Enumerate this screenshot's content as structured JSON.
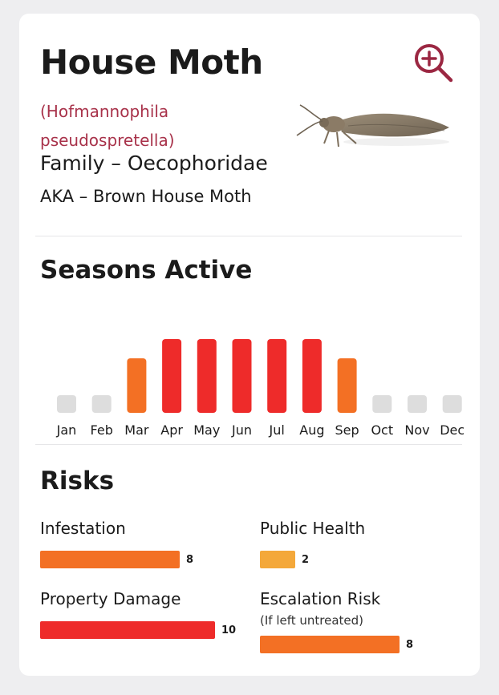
{
  "pest": {
    "name": "House Moth",
    "scientific_name": "(Hofmannophila pseudospretella)",
    "family": "Family – Oecophoridae",
    "aka": "AKA – Brown House Moth"
  },
  "icons": {
    "zoom": "zoom-in-icon",
    "pest_image": "moth-image"
  },
  "colors": {
    "accent": "#9b2742",
    "high": "#ee2b2a",
    "medium": "#f37024",
    "low": "#f4a83a",
    "inactive": "#dddddd"
  },
  "seasons": {
    "title": "Seasons Active",
    "months": [
      {
        "label": "Jan",
        "level": 0
      },
      {
        "label": "Feb",
        "level": 0
      },
      {
        "label": "Mar",
        "level": 2
      },
      {
        "label": "Apr",
        "level": 3
      },
      {
        "label": "May",
        "level": 3
      },
      {
        "label": "Jun",
        "level": 3
      },
      {
        "label": "Jul",
        "level": 3
      },
      {
        "label": "Aug",
        "level": 3
      },
      {
        "label": "Sep",
        "level": 2
      },
      {
        "label": "Oct",
        "level": 0
      },
      {
        "label": "Nov",
        "level": 0
      },
      {
        "label": "Dec",
        "level": 0
      }
    ]
  },
  "risks": {
    "title": "Risks",
    "max": 10,
    "items": [
      {
        "label": "Infestation",
        "note": "",
        "value": 8,
        "color": "#f37024"
      },
      {
        "label": "Public Health",
        "note": "",
        "value": 2,
        "color": "#f4a83a"
      },
      {
        "label": "Property Damage",
        "note": "",
        "value": 10,
        "color": "#ee2b2a"
      },
      {
        "label": "Escalation Risk",
        "note": "(If left untreated)",
        "value": 8,
        "color": "#f37024"
      }
    ]
  }
}
